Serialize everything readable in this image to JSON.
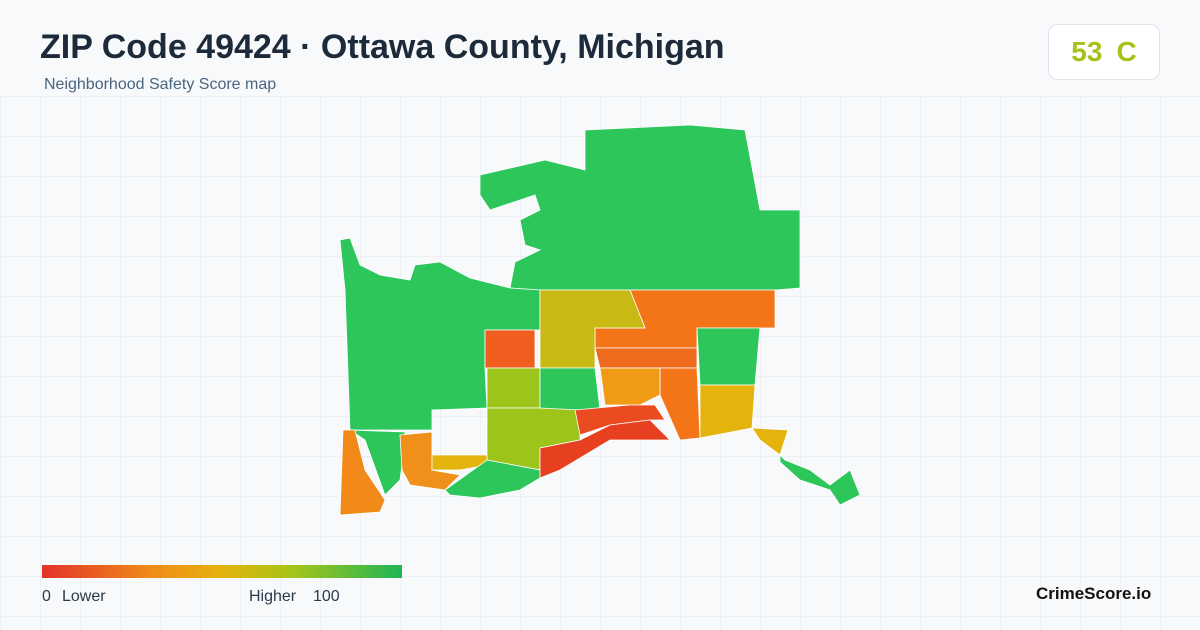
{
  "header": {
    "title": "ZIP Code 49424 · Ottawa County, Michigan",
    "subtitle": "Neighborhood Safety Score map"
  },
  "badge": {
    "score": 53,
    "grade": "C"
  },
  "legend": {
    "min": 0,
    "low_label": "Lower",
    "high_label": "Higher",
    "max": 100
  },
  "footer": {
    "brand": "CrimeScore.io"
  }
}
